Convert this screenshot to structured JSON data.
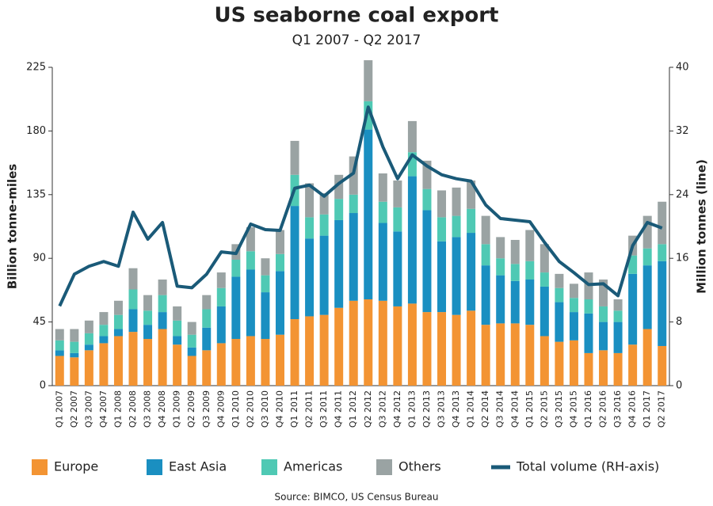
{
  "chart_data": {
    "type": "bar",
    "stacked": true,
    "title": "US seaborne coal export",
    "subtitle": "Q1 2007 - Q2 2017",
    "y_label": "Billion tonne-miles",
    "y2_label": "Million tonnes (line)",
    "source": "Source: BIMCO, US Census Bureau",
    "categories": [
      "Q1 2007",
      "Q2 2007",
      "Q3 2007",
      "Q4 2007",
      "Q1 2008",
      "Q2 2008",
      "Q3 2008",
      "Q4 2008",
      "Q1 2009",
      "Q2 2009",
      "Q3 2009",
      "Q4 2009",
      "Q1 2010",
      "Q2 2010",
      "Q3 2010",
      "Q4 2010",
      "Q1 2011",
      "Q2 2011",
      "Q3 2011",
      "Q4 2011",
      "Q1 2012",
      "Q2 2012",
      "Q3 2012",
      "Q4 2012",
      "Q1 2013",
      "Q2 2013",
      "Q3 2013",
      "Q4 2013",
      "Q1 2014",
      "Q2 2014",
      "Q3 2014",
      "Q4 2014",
      "Q1 2015",
      "Q2 2015",
      "Q3 2015",
      "Q4 2015",
      "Q1 2016",
      "Q2 2016",
      "Q3 2016",
      "Q4 2016",
      "Q1 2017",
      "Q2 2017"
    ],
    "series": [
      {
        "name": "Europe",
        "color": "#f39433",
        "values": [
          21,
          20,
          25,
          30,
          35,
          38,
          33,
          40,
          29,
          21,
          25,
          30,
          33,
          35,
          33,
          36,
          47,
          49,
          50,
          55,
          60,
          61,
          60,
          56,
          58,
          52,
          52,
          50,
          53,
          43,
          44,
          44,
          43,
          35,
          31,
          32,
          23,
          25,
          23,
          29,
          40,
          28
        ]
      },
      {
        "name": "East Asia",
        "color": "#1a8fc1",
        "values": [
          4,
          3,
          4,
          5,
          5,
          16,
          10,
          12,
          6,
          6,
          16,
          26,
          44,
          47,
          33,
          45,
          80,
          55,
          56,
          62,
          62,
          120,
          55,
          53,
          90,
          72,
          50,
          55,
          55,
          42,
          34,
          30,
          32,
          35,
          28,
          20,
          28,
          20,
          22,
          50,
          45,
          60
        ]
      },
      {
        "name": "Americas",
        "color": "#4fc9b4",
        "values": [
          7,
          8,
          8,
          8,
          10,
          14,
          10,
          12,
          11,
          9,
          13,
          13,
          12,
          13,
          12,
          12,
          22,
          15,
          15,
          15,
          13,
          20,
          15,
          17,
          17,
          15,
          17,
          15,
          17,
          15,
          12,
          12,
          13,
          10,
          10,
          10,
          10,
          11,
          8,
          13,
          12,
          12
        ]
      },
      {
        "name": "Others",
        "color": "#9aa3a3",
        "values": [
          8,
          9,
          9,
          9,
          10,
          15,
          11,
          11,
          10,
          9,
          10,
          11,
          11,
          17,
          12,
          17,
          24,
          24,
          15,
          17,
          27,
          29,
          20,
          19,
          22,
          20,
          19,
          20,
          20,
          20,
          15,
          17,
          22,
          20,
          10,
          10,
          19,
          19,
          8,
          14,
          23,
          30
        ]
      },
      {
        "name": "Total volume (RH-axis)",
        "color": "#1a5a78",
        "type": "line",
        "axis": "y2",
        "values": [
          10,
          14,
          15,
          15.6,
          15,
          21.8,
          18.4,
          20.5,
          12.5,
          12.3,
          14,
          16.8,
          16.6,
          20.3,
          19.6,
          19.5,
          24.8,
          25.2,
          23.8,
          25.4,
          26.7,
          35,
          30,
          26,
          29,
          27.6,
          26.5,
          26,
          25.7,
          22.7,
          21,
          20.8,
          20.6,
          18,
          15.6,
          14.2,
          12.7,
          12.8,
          11.3,
          17.6,
          20.5,
          19.8
        ]
      }
    ],
    "ylim": [
      0,
      225
    ],
    "yticks": [
      0,
      45,
      90,
      135,
      180,
      225
    ],
    "y2lim": [
      0,
      40
    ],
    "y2ticks": [
      0,
      8,
      16,
      24,
      32,
      40
    ],
    "grid": false,
    "legend": "bottom"
  }
}
